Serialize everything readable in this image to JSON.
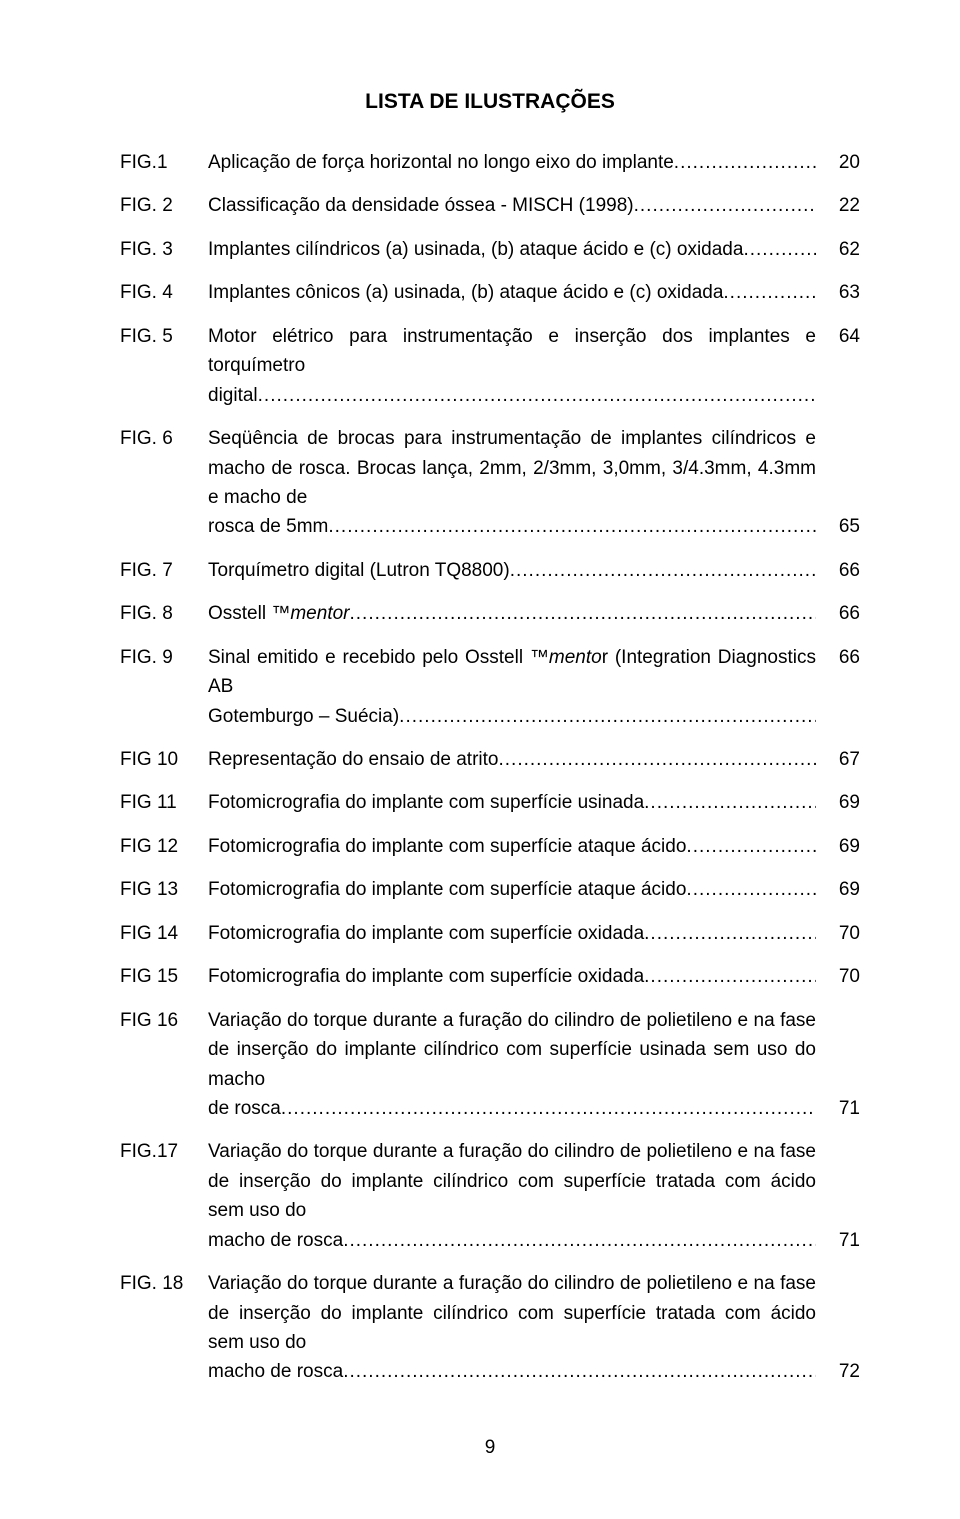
{
  "title": "LISTA DE ILUSTRAÇÕES",
  "page_number": "9",
  "entries": [
    {
      "label": "FIG.1",
      "text": "Aplicação de força horizontal no longo eixo do implante",
      "page": "20",
      "align": "top"
    },
    {
      "label": "FIG. 2",
      "text": "Classificação da densidade óssea - MISCH (1998)",
      "page": "22",
      "align": "top"
    },
    {
      "label": "FIG. 3",
      "text": "Implantes cilíndricos (a) usinada, (b) ataque ácido e (c) oxidada",
      "page": "62",
      "align": "top"
    },
    {
      "label": "FIG. 4",
      "text": "Implantes cônicos (a) usinada, (b) ataque ácido e (c) oxidada",
      "page": "63",
      "align": "top"
    },
    {
      "label": "FIG. 5",
      "pre": "Motor elétrico para instrumentação e inserção dos implantes e torquímetro",
      "last": "digital",
      "page": "64",
      "align": "top"
    },
    {
      "label": "FIG. 6",
      "pre": "Seqüência de brocas para instrumentação de implantes cilíndricos e macho de rosca. Brocas lança, 2mm, 2/3mm, 3,0mm, 3/4.3mm, 4.3mm e macho de",
      "last": "rosca de 5mm",
      "page": "65",
      "align": "bottom"
    },
    {
      "label": "FIG. 7",
      "text": "Torquímetro digital (Lutron TQ8800)",
      "page": "66",
      "align": "top"
    },
    {
      "label": "FIG. 8",
      "text": "Osstell ™mentor",
      "page": "66",
      "align": "top",
      "italic_part": "mentor"
    },
    {
      "label": "FIG. 9",
      "pre": "Sinal emitido e recebido pelo Osstell ™mentor (Integration Diagnostics AB",
      "last": "Gotemburgo – Suécia)",
      "page": "66",
      "align": "top",
      "italic_pre": "mentor (Integration Diagnostics AB"
    },
    {
      "label": "FIG 10",
      "text": "Representação do ensaio de atrito",
      "page": "67",
      "align": "top"
    },
    {
      "label": "FIG 11",
      "text": "Fotomicrografia do implante com superfície usinada",
      "page": "69",
      "align": "top"
    },
    {
      "label": "FIG 12",
      "text": "Fotomicrografia do implante com superfície ataque ácido",
      "page": "69",
      "align": "top"
    },
    {
      "label": "FIG 13",
      "text": "Fotomicrografia do implante com superfície ataque ácido",
      "page": "69",
      "align": "top"
    },
    {
      "label": "FIG 14",
      "text": "Fotomicrografia do implante com superfície oxidada",
      "page": "70",
      "align": "top"
    },
    {
      "label": "FIG 15",
      "text": "Fotomicrografia do implante com superfície oxidada",
      "page": "70",
      "align": "top"
    },
    {
      "label": "FIG 16",
      "pre": "Variação do torque durante a furação do cilindro de polietileno e na fase de inserção do implante cilíndrico com superfície usinada sem uso do macho",
      "last": "de rosca",
      "page": "71",
      "align": "bottom"
    },
    {
      "label": "FIG.17",
      "pre": "Variação do torque durante a furação do cilindro de polietileno e na fase de inserção do implante cilíndrico com superfície tratada com ácido sem uso do",
      "last": "macho de rosca",
      "page": "71",
      "align": "bottom"
    },
    {
      "label": "FIG. 18",
      "pre": "Variação do torque durante a furação do cilindro de polietileno e na fase de inserção do implante cilíndrico com superfície tratada com ácido sem uso do",
      "last": "macho de rosca",
      "page": "72",
      "align": "bottom"
    }
  ]
}
